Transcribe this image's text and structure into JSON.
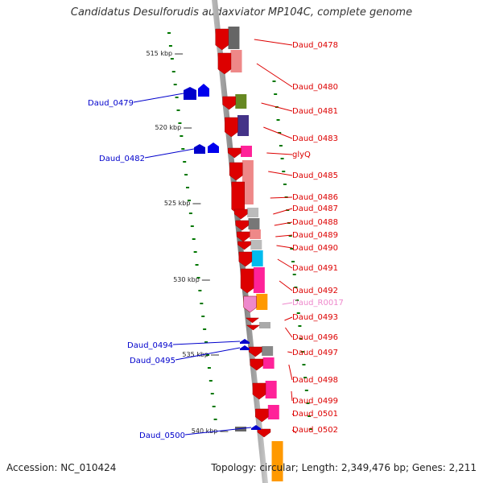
{
  "title": "Candidatus Desulforudis audaxviator MP104C, complete genome",
  "footer": {
    "accession": "Accession: NC_010424",
    "topology": "Topology: circular; Length: 2,349,476 bp; Genes: 2,211"
  },
  "ticks": [
    "515 kbp",
    "520 kbp",
    "525 kbp",
    "530 kbp",
    "535 kbp",
    "540 kbp"
  ],
  "genes_forward": [
    {
      "name": "Daud_0478",
      "color": "#dd0000"
    },
    {
      "name": "Daud_0480",
      "color": "#dd0000"
    },
    {
      "name": "Daud_0481",
      "color": "#dd0000"
    },
    {
      "name": "Daud_0483",
      "color": "#dd0000"
    },
    {
      "name": "glyQ",
      "color": "#dd0000"
    },
    {
      "name": "Daud_0485",
      "color": "#dd0000"
    },
    {
      "name": "Daud_0486",
      "color": "#dd0000"
    },
    {
      "name": "Daud_0487",
      "color": "#dd0000"
    },
    {
      "name": "Daud_0488",
      "color": "#dd0000"
    },
    {
      "name": "Daud_0489",
      "color": "#dd0000"
    },
    {
      "name": "Daud_0490",
      "color": "#dd0000"
    },
    {
      "name": "Daud_0491",
      "color": "#dd0000"
    },
    {
      "name": "Daud_0492",
      "color": "#dd0000"
    },
    {
      "name": "Daud_R0017",
      "color": "#ee88cc"
    },
    {
      "name": "Daud_0493",
      "color": "#dd0000"
    },
    {
      "name": "Daud_0496",
      "color": "#dd0000"
    },
    {
      "name": "Daud_0497",
      "color": "#dd0000"
    },
    {
      "name": "Daud_0498",
      "color": "#dd0000"
    },
    {
      "name": "Daud_0499",
      "color": "#dd0000"
    },
    {
      "name": "Daud_0501",
      "color": "#dd0000"
    },
    {
      "name": "Daud_0502",
      "color": "#dd0000"
    }
  ],
  "genes_reverse": [
    {
      "name": "Daud_0479",
      "color": "#0000cc"
    },
    {
      "name": "Daud_0482",
      "color": "#0000cc"
    },
    {
      "name": "Daud_0494",
      "color": "#0000cc"
    },
    {
      "name": "Daud_0495",
      "color": "#0000cc"
    },
    {
      "name": "Daud_0500",
      "color": "#0000cc"
    }
  ],
  "colors": {
    "forward": "#ee0000",
    "reverse": "#0000ee",
    "backbone": "#999999",
    "tick": "#007700"
  }
}
